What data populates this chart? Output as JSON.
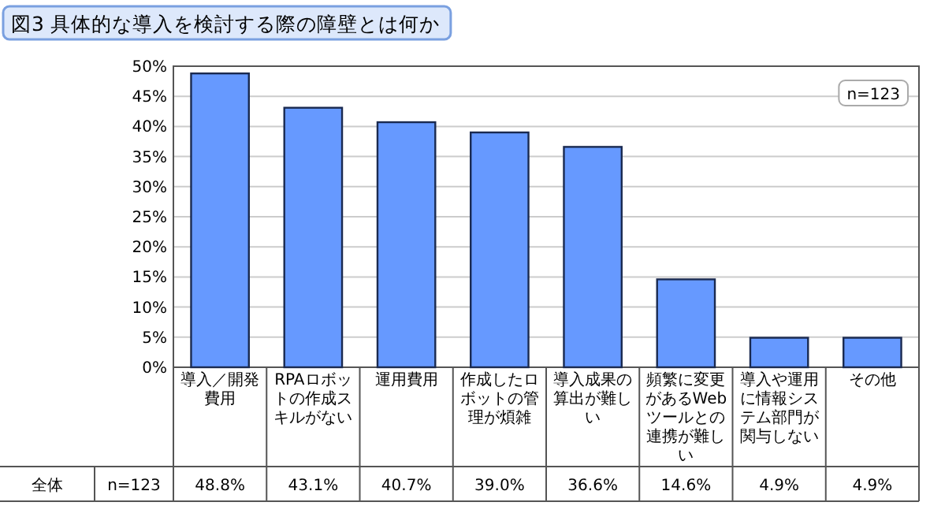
{
  "chart_data": {
    "type": "bar",
    "title": "図3 具体的な導入を検討する際の障壁とは何か",
    "categories": [
      "導入／開発費用",
      "RPAロボットの作成スキルがない",
      "運用費用",
      "作成したロボットの管理が煩雑",
      "導入成果の算出が難しい",
      "頻繁に変更があるWebツールとの連携が難しい",
      "導入や運用に情報システム部門が関与しない",
      "その他"
    ],
    "series": [
      {
        "name": "全体",
        "color": "#6699ff",
        "values": [
          48.8,
          43.1,
          40.7,
          39.0,
          36.6,
          14.6,
          4.9,
          4.9
        ],
        "value_labels": [
          "48.8%",
          "43.1%",
          "40.7%",
          "39.0%",
          "36.6%",
          "14.6%",
          "4.9%",
          "4.9%"
        ]
      }
    ],
    "ylim": [
      0,
      50
    ],
    "yticks": [
      {
        "value": 0,
        "label": "0%"
      },
      {
        "value": 5,
        "label": "5%"
      },
      {
        "value": 10,
        "label": "10%"
      },
      {
        "value": 15,
        "label": "15%"
      },
      {
        "value": 20,
        "label": "20%"
      },
      {
        "value": 25,
        "label": "25%"
      },
      {
        "value": 30,
        "label": "30%"
      },
      {
        "value": 35,
        "label": "35%"
      },
      {
        "value": 40,
        "label": "40%"
      },
      {
        "value": 45,
        "label": "45%"
      },
      {
        "value": 50,
        "label": "50%"
      }
    ],
    "grid": "y",
    "annotations": [
      "n=123",
      "n=123"
    ]
  }
}
